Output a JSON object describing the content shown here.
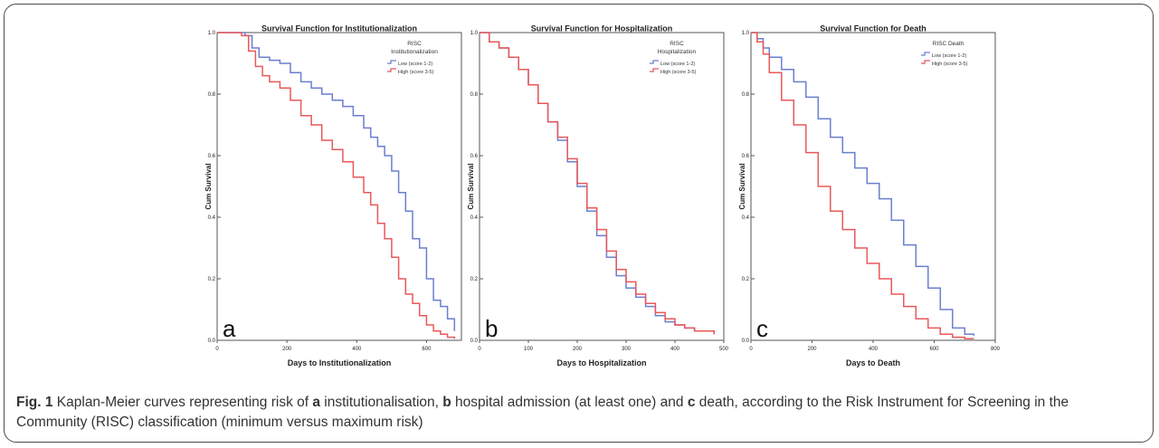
{
  "figure": {
    "caption_label": "Fig. 1",
    "caption_parts": [
      {
        "text": " Kaplan-Meier curves representing risk of ",
        "bold": false
      },
      {
        "text": "a",
        "bold": true
      },
      {
        "text": " institutionalisation, ",
        "bold": false
      },
      {
        "text": "b",
        "bold": true
      },
      {
        "text": " hospital admission (at least one) and ",
        "bold": false
      },
      {
        "text": "c",
        "bold": true
      },
      {
        "text": " death, according to the Risk Instrument for Screening in the Community (RISC) classification (minimum versus maximum risk)",
        "bold": false
      }
    ]
  },
  "colors": {
    "low": "#6a7fcf",
    "high": "#e8585a",
    "axis": "#555555",
    "text": "#222222"
  },
  "chart_data": [
    {
      "type": "line",
      "panel_letter": "a",
      "title": "Survival Function for Institutionalization",
      "xlabel": "Days to Institutionalization",
      "ylabel": "Cum Survival",
      "xlim": [
        0,
        700
      ],
      "ylim": [
        0,
        1.0
      ],
      "xticks": [
        0,
        200,
        400,
        600
      ],
      "yticks": [
        0.0,
        0.2,
        0.4,
        0.6,
        0.8,
        1.0
      ],
      "ytick_labels": [
        "0.0",
        "0.2",
        "0.4",
        "0.6",
        "0.8",
        "1.0"
      ],
      "legend_title": [
        "RISC",
        "Institutionalization"
      ],
      "legend_position": "top-right",
      "grid": false,
      "series": [
        {
          "name": "Low (score 1-2)",
          "color_key": "low",
          "x": [
            0,
            50,
            80,
            100,
            120,
            150,
            180,
            210,
            240,
            270,
            300,
            330,
            360,
            390,
            420,
            440,
            460,
            480,
            500,
            520,
            540,
            560,
            580,
            600,
            620,
            640,
            660,
            680
          ],
          "y": [
            1.0,
            1.0,
            0.99,
            0.95,
            0.92,
            0.91,
            0.9,
            0.87,
            0.84,
            0.82,
            0.8,
            0.78,
            0.76,
            0.73,
            0.69,
            0.66,
            0.63,
            0.6,
            0.55,
            0.48,
            0.42,
            0.33,
            0.3,
            0.2,
            0.13,
            0.11,
            0.07,
            0.03
          ]
        },
        {
          "name": "High (score 3-5)",
          "color_key": "high",
          "x": [
            0,
            50,
            70,
            90,
            110,
            130,
            150,
            180,
            210,
            240,
            270,
            300,
            330,
            360,
            390,
            420,
            440,
            460,
            480,
            500,
            520,
            540,
            560,
            580,
            600,
            620,
            640,
            660,
            680
          ],
          "y": [
            1.0,
            1.0,
            0.99,
            0.94,
            0.89,
            0.86,
            0.84,
            0.82,
            0.78,
            0.73,
            0.7,
            0.65,
            0.62,
            0.58,
            0.53,
            0.48,
            0.44,
            0.38,
            0.33,
            0.27,
            0.2,
            0.15,
            0.12,
            0.08,
            0.05,
            0.03,
            0.02,
            0.01,
            0.005
          ]
        }
      ]
    },
    {
      "type": "line",
      "panel_letter": "b",
      "title": "Survival Function for Hospitalization",
      "xlabel": "Days to Hospitalization",
      "ylabel": "Cum Survival",
      "xlim": [
        0,
        500
      ],
      "ylim": [
        0,
        1.0
      ],
      "xticks": [
        0,
        100,
        200,
        300,
        400,
        500
      ],
      "yticks": [
        0.0,
        0.2,
        0.4,
        0.6,
        0.8,
        1.0
      ],
      "ytick_labels": [
        "0.0",
        "0.2",
        "0.4",
        "0.6",
        "0.8",
        "1.0"
      ],
      "legend_title": [
        "RISC",
        "Hospitalization"
      ],
      "legend_position": "top-right",
      "grid": false,
      "series": [
        {
          "name": "Low (score 1-2)",
          "color_key": "low",
          "x": [
            0,
            20,
            40,
            60,
            80,
            100,
            120,
            140,
            160,
            180,
            200,
            220,
            240,
            260,
            280,
            300,
            320,
            340,
            360,
            380,
            400,
            420,
            440,
            460,
            480
          ],
          "y": [
            1.0,
            0.97,
            0.95,
            0.92,
            0.88,
            0.83,
            0.77,
            0.71,
            0.65,
            0.58,
            0.5,
            0.42,
            0.34,
            0.27,
            0.21,
            0.17,
            0.14,
            0.11,
            0.08,
            0.06,
            0.05,
            0.04,
            0.03,
            0.03,
            0.02
          ]
        },
        {
          "name": "High (score 3-5)",
          "color_key": "high",
          "x": [
            0,
            20,
            40,
            60,
            80,
            100,
            120,
            140,
            160,
            180,
            200,
            220,
            240,
            260,
            280,
            300,
            320,
            340,
            360,
            380,
            400,
            420,
            440,
            460,
            480
          ],
          "y": [
            1.0,
            0.97,
            0.95,
            0.92,
            0.88,
            0.83,
            0.77,
            0.71,
            0.66,
            0.59,
            0.51,
            0.43,
            0.36,
            0.29,
            0.23,
            0.19,
            0.15,
            0.12,
            0.09,
            0.07,
            0.05,
            0.04,
            0.03,
            0.03,
            0.02
          ]
        }
      ]
    },
    {
      "type": "line",
      "panel_letter": "c",
      "title": "Survival Function for Death",
      "xlabel": "Days to Death",
      "ylabel": "Cum Survival",
      "xlim": [
        0,
        800
      ],
      "ylim": [
        0,
        1.0
      ],
      "xticks": [
        0,
        200,
        400,
        600,
        800
      ],
      "yticks": [
        0.0,
        0.2,
        0.4,
        0.6,
        0.8,
        1.0
      ],
      "ytick_labels": [
        "0.0",
        "0.2",
        "0.4",
        "0.6",
        "0.8",
        "1.0"
      ],
      "legend_title": [
        "RISC Death"
      ],
      "legend_position": "top-right",
      "grid": false,
      "series": [
        {
          "name": "Low (score 1-2)",
          "color_key": "low",
          "x": [
            0,
            20,
            40,
            60,
            100,
            140,
            180,
            220,
            260,
            300,
            340,
            380,
            420,
            460,
            500,
            540,
            580,
            620,
            660,
            700,
            730
          ],
          "y": [
            1.0,
            0.98,
            0.95,
            0.92,
            0.88,
            0.84,
            0.79,
            0.72,
            0.66,
            0.61,
            0.56,
            0.51,
            0.46,
            0.39,
            0.31,
            0.24,
            0.17,
            0.1,
            0.04,
            0.02,
            0.015
          ]
        },
        {
          "name": "High (score 3-5)",
          "color_key": "high",
          "x": [
            0,
            20,
            40,
            60,
            100,
            140,
            180,
            220,
            260,
            300,
            340,
            380,
            420,
            460,
            500,
            540,
            580,
            620,
            660,
            700,
            730
          ],
          "y": [
            1.0,
            0.97,
            0.93,
            0.87,
            0.78,
            0.7,
            0.61,
            0.5,
            0.42,
            0.36,
            0.3,
            0.25,
            0.2,
            0.15,
            0.11,
            0.07,
            0.04,
            0.02,
            0.01,
            0.005,
            0.005
          ]
        }
      ]
    }
  ]
}
